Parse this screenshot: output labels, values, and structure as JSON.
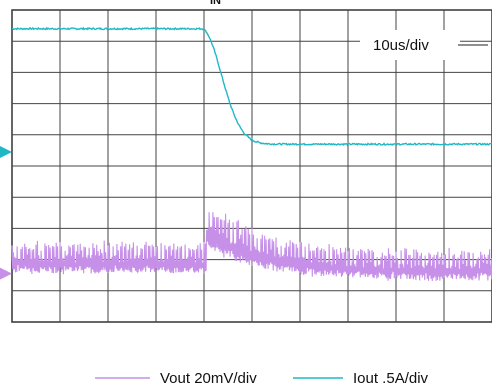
{
  "chart_data": {
    "type": "line",
    "top_label": "IN",
    "timebase_label": "10us/div",
    "divisions": {
      "x": 10,
      "y": 10
    },
    "xlim_div": [
      0,
      10
    ],
    "grid": true,
    "legend_position": "bottom",
    "series": [
      {
        "name": "Vout 20mV/div",
        "color": "#c690e8",
        "scale_label": "20mV/div",
        "waveform": "ripple",
        "baseline_div": 1.85,
        "ripple_pp_div_before": 1.3,
        "step_at_div": 4.05,
        "overshoot_div": 1.35,
        "ripple_pp_div_after": 1.6,
        "recovered_baseline_div": 1.6
      },
      {
        "name": "Iout .5A/div",
        "color": "#20b8c4",
        "scale_label": ".5A/div",
        "waveform": "step-down",
        "high_level_div": 9.4,
        "low_level_div": 5.7,
        "fall_start_div": 3.95,
        "fall_end_div": 5.8
      }
    ],
    "markers": [
      {
        "series": "Iout .5A/div",
        "shape": "triangle",
        "level_div": 5.45
      },
      {
        "series": "Vout 20mV/div",
        "shape": "triangle",
        "level_div": 1.55
      }
    ]
  }
}
